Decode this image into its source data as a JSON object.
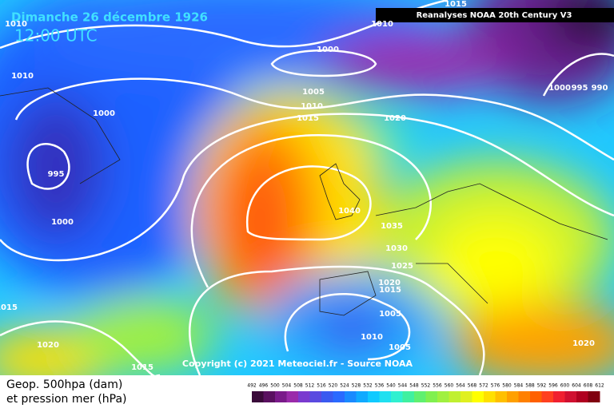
{
  "header": {
    "title": "Dimanche 26 décembre 1926",
    "time": "12:00 UTC",
    "source": "Reanalyses NOAA 20th Century V3"
  },
  "copyright": "Copyright (c) 2021 Meteociel.fr - Source NOAA",
  "isobar_labels": [
    "1010",
    "1010",
    "1000",
    "1010",
    "1005",
    "1010",
    "1015",
    "1020",
    "1000",
    "995",
    "1000",
    "1040",
    "1035",
    "1030",
    "1025",
    "1020",
    "1015",
    "1005",
    "1010",
    "1005",
    "1020",
    "1015",
    "1015",
    "1020",
    "1000",
    "995",
    "990",
    "1015"
  ],
  "legend": {
    "line1": "Geop. 500hpa (dam)",
    "line2": "et pression mer (hPa)",
    "scale": [
      492,
      496,
      500,
      504,
      508,
      512,
      516,
      520,
      524,
      528,
      532,
      536,
      540,
      544,
      548,
      552,
      556,
      560,
      564,
      568,
      572,
      576,
      580,
      584,
      588,
      592,
      596,
      600,
      604,
      608,
      612
    ],
    "colors": [
      "#3a0a3a",
      "#5a1060",
      "#7a1a8a",
      "#9a2aaa",
      "#7a3acf",
      "#5a4ae0",
      "#3a5af0",
      "#2a6aff",
      "#1a8aff",
      "#10aaff",
      "#10caff",
      "#20e0f0",
      "#30f0d0",
      "#40f0a0",
      "#60f070",
      "#80f050",
      "#a0f040",
      "#c0f030",
      "#e0f020",
      "#ffff00",
      "#ffe000",
      "#ffc000",
      "#ffa000",
      "#ff8000",
      "#ff6000",
      "#ff4020",
      "#f02030",
      "#d01030",
      "#b00020",
      "#800010"
    ]
  }
}
